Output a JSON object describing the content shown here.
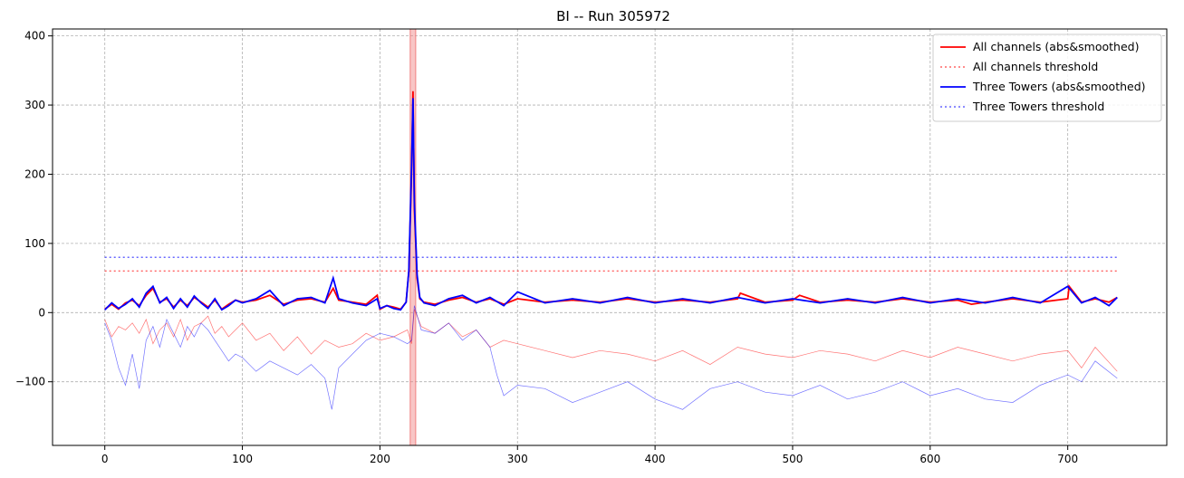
{
  "chart_data": {
    "type": "line",
    "title": "BI -- Run 305972",
    "xlabel": "",
    "ylabel": "",
    "xlim": [
      -38,
      772
    ],
    "ylim": [
      -192,
      410
    ],
    "xticks": [
      0,
      100,
      200,
      300,
      400,
      500,
      600,
      700
    ],
    "yticks": [
      -100,
      0,
      100,
      200,
      300,
      400
    ],
    "grid": true,
    "legend_position": "top-right",
    "highlight_band": {
      "x0": 222,
      "x1": 226,
      "color": "#f08080"
    },
    "colors": {
      "all": "#ff0000",
      "towers": "#0000ff"
    },
    "series": [
      {
        "name": "All channels (abs&smoothed)",
        "style": "solid",
        "color": "#ff0000",
        "x": [
          0,
          5,
          10,
          15,
          20,
          25,
          30,
          35,
          40,
          45,
          50,
          55,
          60,
          65,
          70,
          75,
          80,
          85,
          90,
          95,
          100,
          110,
          120,
          130,
          140,
          150,
          160,
          166,
          170,
          180,
          190,
          198,
          200,
          205,
          210,
          215,
          219,
          221,
          223,
          224,
          225,
          227,
          229,
          232,
          240,
          250,
          260,
          270,
          280,
          290,
          300,
          320,
          340,
          360,
          380,
          400,
          420,
          440,
          460,
          462,
          480,
          500,
          505,
          520,
          540,
          560,
          580,
          600,
          620,
          630,
          640,
          660,
          680,
          700,
          701,
          710,
          720,
          730,
          736
        ],
        "values": [
          5,
          12,
          5,
          14,
          18,
          10,
          25,
          35,
          15,
          20,
          8,
          18,
          10,
          22,
          15,
          8,
          18,
          5,
          12,
          18,
          15,
          18,
          25,
          12,
          18,
          20,
          15,
          35,
          18,
          15,
          12,
          25,
          5,
          10,
          8,
          5,
          15,
          60,
          200,
          320,
          150,
          50,
          20,
          15,
          12,
          18,
          22,
          15,
          20,
          12,
          20,
          15,
          18,
          15,
          20,
          15,
          18,
          15,
          20,
          28,
          15,
          18,
          25,
          15,
          18,
          15,
          20,
          15,
          18,
          12,
          15,
          20,
          15,
          20,
          38,
          15,
          20,
          15,
          22
        ]
      },
      {
        "name": "All channels threshold",
        "style": "dotted",
        "color": "#ff0000",
        "x": [
          0,
          736
        ],
        "values": [
          60,
          60
        ]
      },
      {
        "name": "Three Towers (abs&smoothed)",
        "style": "solid",
        "color": "#0000ff",
        "x": [
          0,
          5,
          10,
          15,
          20,
          25,
          30,
          35,
          40,
          45,
          50,
          55,
          60,
          65,
          70,
          75,
          80,
          85,
          90,
          95,
          100,
          110,
          120,
          130,
          140,
          150,
          160,
          166,
          170,
          180,
          190,
          198,
          200,
          205,
          210,
          215,
          219,
          221,
          223,
          224,
          225,
          227,
          229,
          232,
          240,
          250,
          260,
          270,
          280,
          290,
          300,
          320,
          340,
          360,
          380,
          400,
          420,
          440,
          460,
          480,
          500,
          520,
          540,
          560,
          580,
          600,
          620,
          640,
          660,
          680,
          700,
          710,
          720,
          730,
          736
        ],
        "values": [
          4,
          14,
          6,
          12,
          20,
          8,
          28,
          38,
          14,
          22,
          6,
          20,
          8,
          24,
          14,
          6,
          20,
          4,
          10,
          18,
          14,
          20,
          32,
          10,
          20,
          22,
          14,
          50,
          20,
          14,
          10,
          20,
          6,
          10,
          6,
          4,
          15,
          60,
          210,
          310,
          160,
          55,
          22,
          14,
          10,
          20,
          25,
          14,
          22,
          10,
          30,
          14,
          20,
          14,
          22,
          14,
          20,
          14,
          22,
          14,
          20,
          14,
          20,
          14,
          22,
          14,
          20,
          14,
          22,
          14,
          38,
          14,
          22,
          10,
          22
        ]
      },
      {
        "name": "Three Towers threshold",
        "style": "dotted",
        "color": "#0000ff",
        "x": [
          0,
          736
        ],
        "values": [
          80,
          80
        ]
      },
      {
        "name": "",
        "style": "thin",
        "color": "#ff0000",
        "x": [
          0,
          5,
          10,
          15,
          20,
          25,
          30,
          35,
          40,
          45,
          50,
          55,
          60,
          65,
          70,
          75,
          80,
          85,
          90,
          95,
          100,
          110,
          120,
          130,
          140,
          150,
          160,
          170,
          180,
          190,
          200,
          210,
          220,
          223,
          225,
          230,
          240,
          250,
          260,
          270,
          280,
          290,
          300,
          320,
          340,
          360,
          380,
          400,
          420,
          440,
          460,
          480,
          500,
          520,
          540,
          560,
          580,
          600,
          620,
          640,
          660,
          680,
          700,
          710,
          720,
          736
        ],
        "values": [
          -10,
          -35,
          -20,
          -25,
          -15,
          -30,
          -10,
          -45,
          -25,
          -15,
          -35,
          -10,
          -40,
          -20,
          -15,
          -5,
          -30,
          -20,
          -35,
          -25,
          -15,
          -40,
          -30,
          -55,
          -35,
          -60,
          -40,
          -50,
          -45,
          -30,
          -40,
          -35,
          -25,
          -45,
          5,
          -20,
          -30,
          -15,
          -35,
          -25,
          -50,
          -40,
          -45,
          -55,
          -65,
          -55,
          -60,
          -70,
          -55,
          -75,
          -50,
          -60,
          -65,
          -55,
          -60,
          -70,
          -55,
          -65,
          -50,
          -60,
          -70,
          -60,
          -55,
          -80,
          -50,
          -85
        ]
      },
      {
        "name": "",
        "style": "thin",
        "color": "#0000ff",
        "x": [
          0,
          5,
          10,
          15,
          20,
          25,
          30,
          35,
          40,
          45,
          50,
          55,
          60,
          65,
          70,
          75,
          80,
          85,
          90,
          95,
          100,
          110,
          120,
          130,
          140,
          150,
          160,
          165,
          170,
          180,
          190,
          200,
          210,
          220,
          223,
          225,
          230,
          240,
          250,
          260,
          270,
          280,
          285,
          290,
          300,
          320,
          340,
          360,
          380,
          400,
          420,
          440,
          460,
          480,
          500,
          520,
          540,
          560,
          580,
          600,
          620,
          640,
          660,
          680,
          700,
          710,
          720,
          736
        ],
        "values": [
          -15,
          -40,
          -80,
          -105,
          -60,
          -110,
          -40,
          -20,
          -50,
          -10,
          -30,
          -50,
          -20,
          -35,
          -15,
          -25,
          -40,
          -55,
          -70,
          -60,
          -65,
          -85,
          -70,
          -80,
          -90,
          -75,
          -95,
          -140,
          -80,
          -60,
          -40,
          -30,
          -35,
          -45,
          -40,
          10,
          -25,
          -30,
          -15,
          -40,
          -25,
          -50,
          -90,
          -120,
          -105,
          -110,
          -130,
          -115,
          -100,
          -125,
          -140,
          -110,
          -100,
          -115,
          -120,
          -105,
          -125,
          -115,
          -100,
          -120,
          -110,
          -125,
          -130,
          -105,
          -90,
          -100,
          -70,
          -95
        ]
      }
    ]
  }
}
